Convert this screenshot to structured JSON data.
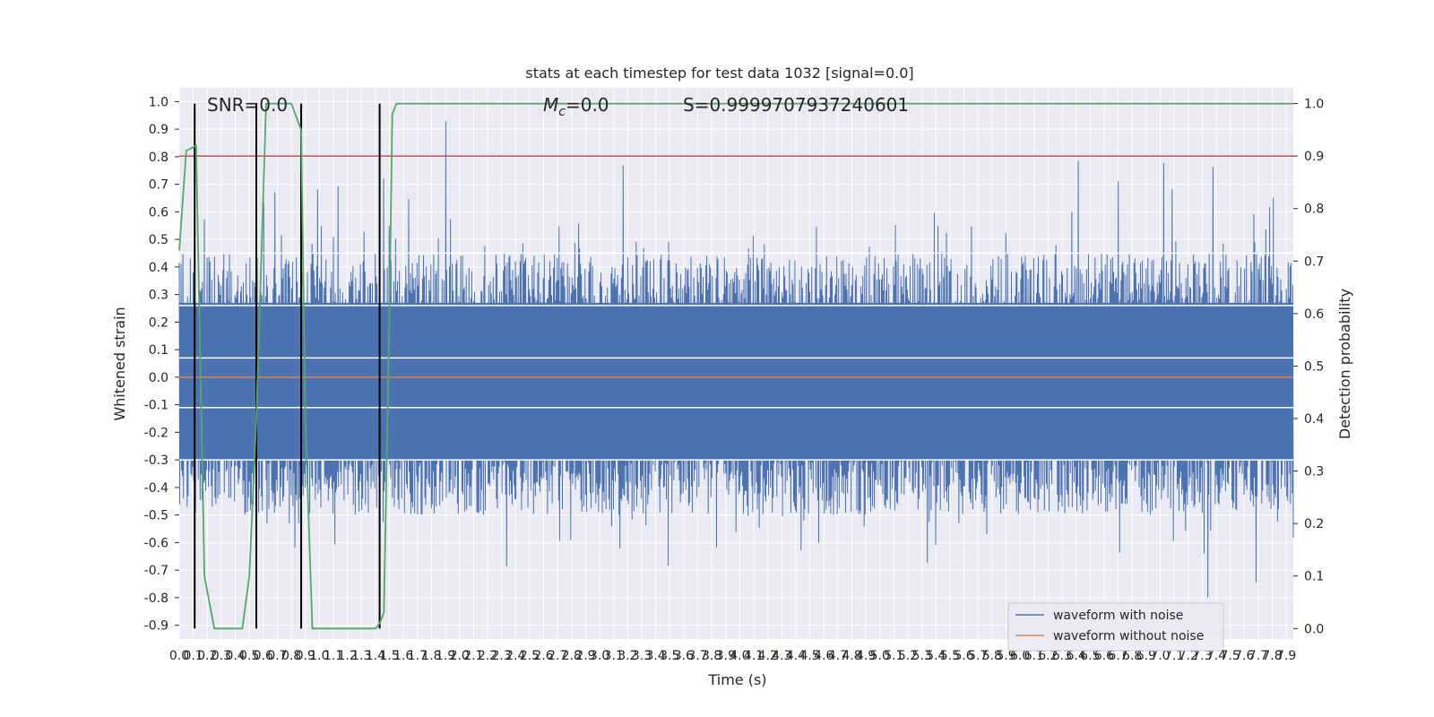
{
  "chart_data": {
    "type": "line",
    "title": "stats at each timestep for test data 1032 [signal=0.0]",
    "xlabel": "Time (s)",
    "ylabel": "Whitened strain",
    "y2label": "Detection probability",
    "xlim": [
      0.0,
      7.95
    ],
    "ylim": [
      -0.95,
      1.05
    ],
    "y2lim": [
      -0.02,
      1.03
    ],
    "xticks": [
      0.0,
      0.1,
      0.2,
      0.3,
      0.4,
      0.5,
      0.6,
      0.7,
      0.8,
      0.9,
      1.0,
      1.1,
      1.2,
      1.3,
      1.4,
      1.5,
      1.6,
      1.7,
      1.8,
      1.9,
      2.0,
      2.1,
      2.2,
      2.3,
      2.4,
      2.5,
      2.6,
      2.7,
      2.8,
      2.9,
      3.0,
      3.1,
      3.2,
      3.3,
      3.4,
      3.5,
      3.6,
      3.7,
      3.8,
      3.9,
      4.0,
      4.1,
      4.2,
      4.3,
      4.4,
      4.5,
      4.6,
      4.7,
      4.8,
      4.9,
      5.0,
      5.1,
      5.2,
      5.3,
      5.4,
      5.5,
      5.6,
      5.7,
      5.8,
      5.9,
      6.0,
      6.1,
      6.2,
      6.3,
      6.4,
      6.5,
      6.6,
      6.7,
      6.8,
      6.9,
      7.0,
      7.1,
      7.2,
      7.3,
      7.4,
      7.5,
      7.6,
      7.7,
      7.8,
      7.9
    ],
    "xtick_labels": [
      "0.0",
      "0.1",
      "0.2",
      "0.3",
      "0.4",
      "0.5",
      "0.6",
      "0.7",
      "0.8",
      "0.9",
      "1.0",
      "1.1",
      "1.2",
      "1.3",
      "1.4",
      "1.5",
      "1.6",
      "1.7",
      "1.8",
      "1.9",
      "2.0",
      "2.1",
      "2.2",
      "2.3",
      "2.4",
      "2.5",
      "2.6",
      "2.7",
      "2.8",
      "2.9",
      "3.0",
      "3.1",
      "3.2",
      "3.3",
      "3.4",
      "3.5",
      "3.6",
      "3.7",
      "3.8",
      "3.9",
      "4.0",
      "4.1",
      "4.2",
      "4.3",
      "4.4",
      "4.5",
      "4.6",
      "4.7",
      "4.8",
      "4.9",
      "5.0",
      "5.1",
      "5.2",
      "5.3",
      "5.4",
      "5.5",
      "5.6",
      "5.7",
      "5.8",
      "5.9",
      "6.0",
      "6.1",
      "6.2",
      "6.3",
      "6.4",
      "6.5",
      "6.6",
      "6.7",
      "6.8",
      "6.9",
      "7.0",
      "7.1",
      "7.2",
      "7.3",
      "7.4",
      "7.5",
      "7.6",
      "7.7",
      "7.8",
      "7.9"
    ],
    "yticks": [
      1.0,
      0.9,
      0.8,
      0.7,
      0.6,
      0.5,
      0.4,
      0.3,
      0.2,
      0.1,
      0.0,
      -0.1,
      -0.2,
      -0.3,
      -0.4,
      -0.5,
      -0.6,
      -0.7,
      -0.8,
      -0.9
    ],
    "ytick_labels": [
      "1.0",
      "0.9",
      "0.8",
      "0.7",
      "0.6",
      "0.5",
      "0.4",
      "0.3",
      "0.2",
      "0.1",
      "0.0",
      "-0.1",
      "-0.2",
      "-0.3",
      "-0.4",
      "-0.5",
      "-0.6",
      "-0.7",
      "-0.8",
      "-0.9"
    ],
    "y2ticks": [
      1.0,
      0.9,
      0.8,
      0.7,
      0.6,
      0.5,
      0.4,
      0.3,
      0.2,
      0.1,
      0.0
    ],
    "y2tick_labels": [
      "1.0",
      "0.9",
      "0.8",
      "0.7",
      "0.6",
      "0.5",
      "0.4",
      "0.3",
      "0.2",
      "0.1",
      "0.0"
    ],
    "grid": true,
    "annotations": {
      "snr": "SNR=0.0",
      "mc": "M",
      "mc_sub": "c",
      "mc_value": "=0.0",
      "s": "S=0.9999707937240601"
    },
    "series": [
      {
        "name": "waveform with noise",
        "color": "#4c72b0",
        "description_values": {
          "typical_positive_peak": 0.45,
          "typical_negative_peak": -0.55,
          "dense_band": [
            -0.3,
            0.27
          ],
          "max": 1.0,
          "min": -0.85
        }
      },
      {
        "name": "waveform without noise",
        "color": "#dd8452",
        "x": [
          0.0,
          7.95
        ],
        "y": [
          0.0,
          0.0
        ]
      },
      {
        "name": "",
        "color": "#55a868",
        "axis": "right",
        "x": [
          0.0,
          0.05,
          0.12,
          0.18,
          0.25,
          0.3,
          0.4,
          0.45,
          0.5,
          0.55,
          0.62,
          0.7,
          0.8,
          0.87,
          0.9,
          0.95,
          1.1,
          1.2,
          1.3,
          1.4,
          1.43,
          1.46,
          1.5,
          1.52,
          1.55,
          1.6,
          7.95
        ],
        "y": [
          0.72,
          0.91,
          0.92,
          0.1,
          0.0,
          0.0,
          0.0,
          0.0,
          0.1,
          0.4,
          1.0,
          1.0,
          1.0,
          0.95,
          0.4,
          0.0,
          0.0,
          0.0,
          0.0,
          0.0,
          0.01,
          0.03,
          0.6,
          0.98,
          1.0,
          1.0,
          1.0
        ]
      },
      {
        "name": "",
        "color": "#c44e52",
        "axis": "right",
        "x": [
          0.0,
          7.95
        ],
        "y": [
          0.9,
          0.9
        ]
      }
    ],
    "vlines": [
      0.11,
      0.55,
      0.87,
      1.43
    ],
    "hline_white_bands": [
      -0.3,
      -0.11,
      0.07,
      0.26,
      0.45
    ]
  },
  "legend": {
    "items": [
      {
        "label": "waveform with noise",
        "color": "#4c72b0"
      },
      {
        "label": "waveform without noise",
        "color": "#dd8452"
      }
    ]
  },
  "colors": {
    "plot_bg": "#eaeaf2",
    "grid": "#ffffff",
    "noise": "#4c72b0",
    "no_noise": "#dd8452",
    "prob": "#55a868",
    "threshold": "#c44e52",
    "vline": "#000000"
  }
}
